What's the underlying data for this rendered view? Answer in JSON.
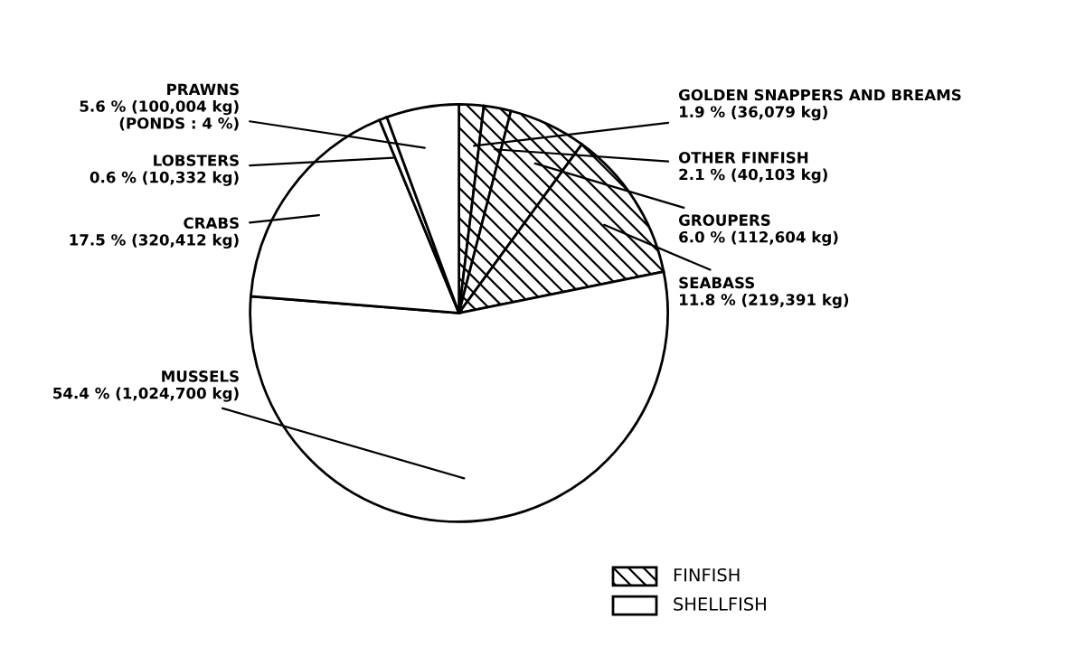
{
  "chart_data": {
    "type": "pie",
    "categories": [
      "GOLDEN SNAPPERS AND BREAMS",
      "OTHER FINFISH",
      "GROUPERS",
      "SEABASS",
      "MUSSELS",
      "CRABS",
      "LOBSTERS",
      "PRAWNS"
    ],
    "values": [
      1.9,
      2.1,
      6.0,
      11.8,
      54.4,
      17.5,
      0.6,
      5.6
    ],
    "colors": [
      "#000000",
      "#000000",
      "#000000",
      "#000000",
      "#ffffff",
      "#ffffff",
      "#ffffff",
      "#ffffff"
    ],
    "value_labels": [
      "1.9 % (36,079 kg)",
      "2.1 % (40,103 kg)",
      "6.0 % (112,604 kg)",
      "11.8 % (219,391 kg)",
      "54.4 % (1,024,700 kg)",
      "17.5 % (320,412 kg)",
      "0.6 % (10,332 kg)",
      "5.6 % (100,004 kg)\n(PONDS : 4 %)"
    ],
    "annotations": [
      "FINFISH",
      "SHELLFISH"
    ]
  }
}
